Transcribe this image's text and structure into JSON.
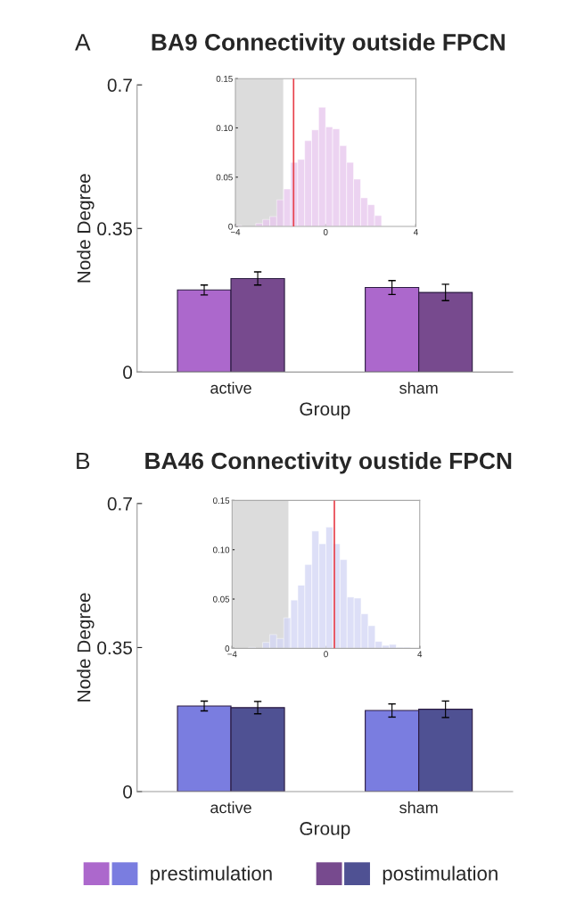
{
  "chart_data": [
    {
      "type": "bar",
      "title": "BA9 Connectivity outside FPCN",
      "annotations": [
        "A"
      ],
      "xlabel": "Group",
      "ylabel": "Node Degree",
      "categories": [
        "active",
        "sham"
      ],
      "ylim": [
        0,
        0.7
      ],
      "yticks": [
        0,
        0.35,
        0.7
      ],
      "series": [
        {
          "color": "#ac68cc",
          "values": [
            0.2,
            0.206
          ],
          "errors": [
            0.012,
            0.017
          ]
        },
        {
          "color": "#774a8e",
          "values": [
            0.228,
            0.194
          ],
          "errors": [
            0.016,
            0.02
          ]
        }
      ]
    },
    {
      "type": "histogram",
      "color": "#e8c8ee",
      "bins": [
        -4.03,
        -3.72,
        -3.41,
        -3.1,
        -2.79,
        -2.48,
        -2.17,
        -1.86,
        -1.55,
        -1.24,
        -0.93,
        -0.62,
        -0.31,
        0,
        0.31,
        0.62,
        0.93,
        1.24,
        1.55,
        1.86,
        2.17,
        2.48
      ],
      "values": [
        0.001,
        0,
        0,
        0.003,
        0.007,
        0.01,
        0.027,
        0.038,
        0.065,
        0.068,
        0.087,
        0.098,
        0.121,
        0.101,
        0.099,
        0.082,
        0.065,
        0.048,
        0.029,
        0.022,
        0.011
      ],
      "xlim": [
        -4,
        4
      ],
      "xticks": [
        {
          "value": -4,
          "label": "−4"
        },
        0,
        4
      ],
      "ylim": [
        0,
        0.15
      ],
      "yticks": [
        0,
        0.05,
        {
          "value": 0.1,
          "label": "0.10"
        },
        0.15
      ],
      "bands": [
        {
          "axis": "x",
          "from": -4,
          "to": -1.88,
          "color": "#dcdcdc"
        }
      ],
      "ref_lines": [
        {
          "axis": "x",
          "value": -1.42,
          "color": "#e8414b"
        }
      ]
    },
    {
      "type": "bar",
      "title": "BA46 Connectivity oustide FPCN",
      "annotations": [
        "B"
      ],
      "xlabel": "Group",
      "ylabel": "Node Degree",
      "categories": [
        "active",
        "sham"
      ],
      "ylim": [
        0,
        0.7
      ],
      "yticks": [
        0,
        0.35,
        0.7
      ],
      "legend": "bottom",
      "series": [
        {
          "name": "prestimulation",
          "color": "#7a7de0",
          "values": [
            0.208,
            0.197
          ],
          "errors": [
            0.012,
            0.016
          ]
        },
        {
          "name": "postimulation",
          "color": "#4f5193",
          "values": [
            0.204,
            0.2
          ],
          "errors": [
            0.015,
            0.02
          ]
        }
      ]
    },
    {
      "type": "histogram",
      "color": "#d5d8f5",
      "bins": [
        -3.3,
        -3.0,
        -2.7,
        -2.4,
        -2.1,
        -1.8,
        -1.5,
        -1.2,
        -0.9,
        -0.6,
        -0.3,
        0,
        0.3,
        0.6,
        0.9,
        1.2,
        1.5,
        1.8,
        2.1,
        2.4,
        2.7,
        3.0,
        3.3,
        3.6
      ],
      "values": [
        0.001,
        0,
        0.006,
        0.014,
        0.01,
        0.031,
        0.049,
        0.064,
        0.085,
        0.119,
        0.106,
        0.123,
        0.106,
        0.09,
        0.052,
        0.051,
        0.035,
        0.023,
        0.007,
        0.003,
        0.004,
        0.001,
        0.001
      ],
      "xlim": [
        -4,
        4
      ],
      "xticks": [
        {
          "value": -4,
          "label": "−4"
        },
        0,
        4
      ],
      "ylim": [
        0,
        0.15
      ],
      "yticks": [
        0,
        0.05,
        {
          "value": 0.1,
          "label": "0.10"
        },
        0.15
      ],
      "bands": [
        {
          "axis": "x",
          "from": -4,
          "to": -1.6,
          "color": "#dcdcdc"
        }
      ],
      "ref_lines": [
        {
          "axis": "x",
          "value": 0.36,
          "color": "#e8414b"
        }
      ]
    }
  ]
}
